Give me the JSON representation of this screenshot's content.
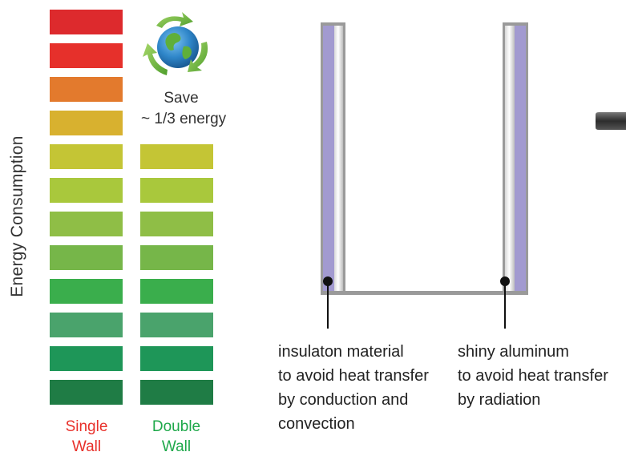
{
  "axis": {
    "y_label": "Energy Consumption"
  },
  "columns": {
    "single": {
      "line1": "Single",
      "line2": "Wall",
      "color": "#e8302a"
    },
    "double": {
      "line1": "Double",
      "line2": "Wall",
      "color": "#1ea84a"
    }
  },
  "save": {
    "line1": "Save",
    "line2": "~ 1/3 energy"
  },
  "bars": {
    "colors": [
      "#dd2a2d",
      "#e6302b",
      "#e37a2d",
      "#d8b12f",
      "#c4c535",
      "#a9c83c",
      "#8fbe46",
      "#76b649",
      "#3aae4c",
      "#4aa36c",
      "#1e9658",
      "#1f7c45"
    ]
  },
  "annotations": {
    "insulation": {
      "lines": [
        "insulaton material",
        "to avoid heat transfer",
        "by conduction and",
        "convection"
      ]
    },
    "aluminum": {
      "lines": [
        "shiny aluminum",
        "to avoid heat transfer",
        "by radiation"
      ]
    }
  },
  "icons": {
    "globe": "recycle-globe-icon",
    "knob": "lid-knob-icon"
  }
}
